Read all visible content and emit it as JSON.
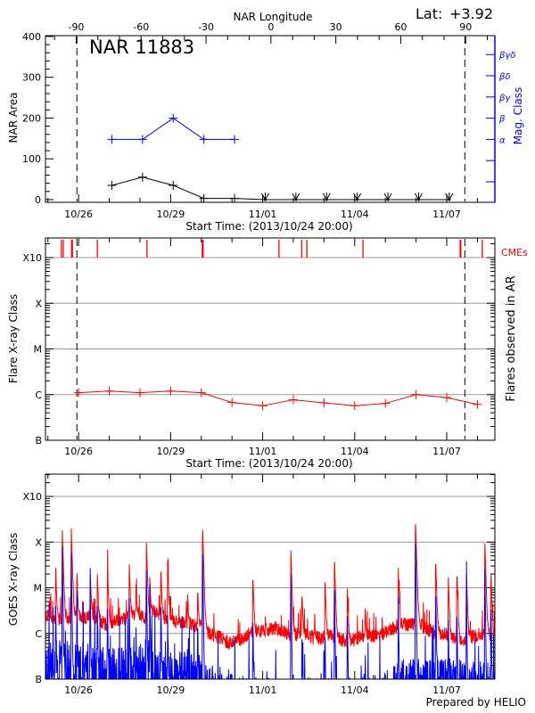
{
  "header": {
    "lat_label": "Lat:",
    "lat_value": "+3.92"
  },
  "footer": {
    "credit": "Prepared by HELIO"
  },
  "colors": {
    "axis": "#000000",
    "grid": "#999999",
    "area": "#000000",
    "mag_class": "#0000ff",
    "flare": "#ff0000",
    "cme": "#ff0000",
    "goes_long": "#ff0000",
    "goes_short": "#0000ff"
  },
  "chart_data": [
    {
      "type": "line",
      "title": "NAR 11883",
      "xlabel": "Start Time: (2013/10/24 20:00)",
      "ylabel": "NAR Area",
      "y2label": "Mag. Class",
      "top_axis_label": "NAR Longitude",
      "top_axis_ticks": [
        "-90",
        "-60",
        "-30",
        "0",
        "30",
        "60",
        "90"
      ],
      "top_axis_range": [
        -104.2,
        103.5
      ],
      "xlim": [
        "2013-10-24T22:05",
        "2013-11-08T13:40"
      ],
      "x_ticks": [
        {
          "label": "10/26",
          "t": "2013-10-26T00:00"
        },
        {
          "label": "10/29",
          "t": "2013-10-29T00:00"
        },
        {
          "label": "11/01",
          "t": "2013-11-01T00:00"
        },
        {
          "label": "11/04",
          "t": "2013-11-04T00:00"
        },
        {
          "label": "11/07",
          "t": "2013-11-07T00:00"
        }
      ],
      "ylim": [
        -6.6,
        402
      ],
      "y_ticks": [
        "0",
        "100",
        "200",
        "300",
        "400"
      ],
      "mag_class_ticks": [
        "α",
        "β",
        "βγ",
        "βδ",
        "βγδ"
      ],
      "limb_crossings": [
        "2013-10-25T22:40",
        "2013-11-07T14:10"
      ],
      "area_series": [
        {
          "t": "2013-10-27T02:00",
          "v": 35,
          "marker": "plus"
        },
        {
          "t": "2013-10-28T02:00",
          "v": 55,
          "marker": "plus"
        },
        {
          "t": "2013-10-29T02:00",
          "v": 35,
          "marker": "plus"
        },
        {
          "t": "2013-10-30T02:00",
          "v": 3,
          "marker": "plus"
        },
        {
          "t": "2013-10-31T02:00",
          "v": 3,
          "marker": "plus"
        },
        {
          "t": "2013-11-01T02:00",
          "v": 0,
          "marker": "v"
        },
        {
          "t": "2013-11-02T02:00",
          "v": 0,
          "marker": "v"
        },
        {
          "t": "2013-11-03T02:00",
          "v": 0,
          "marker": "v"
        },
        {
          "t": "2013-11-04T02:00",
          "v": 0,
          "marker": "v"
        },
        {
          "t": "2013-11-05T02:00",
          "v": 0,
          "marker": "v"
        },
        {
          "t": "2013-11-06T02:00",
          "v": 0,
          "marker": "v"
        },
        {
          "t": "2013-11-07T02:00",
          "v": 0,
          "marker": "v"
        }
      ],
      "mag_class_series": [
        {
          "t": "2013-10-27T02:00",
          "v": "α"
        },
        {
          "t": "2013-10-28T02:00",
          "v": "α"
        },
        {
          "t": "2013-10-29T02:00",
          "v": "β"
        },
        {
          "t": "2013-10-30T02:00",
          "v": "α"
        },
        {
          "t": "2013-10-31T02:00",
          "v": "α"
        }
      ]
    },
    {
      "type": "line",
      "xlabel": "Start Time: (2013/10/24 20:00)",
      "ylabel": "Flare X-ray Class",
      "y2label": "Flares observed in AR",
      "y_scale": "log",
      "ylim": [
        1e-07,
        0.0027
      ],
      "y_ticks": [
        {
          "label": "B",
          "v": 1e-07
        },
        {
          "label": "C",
          "v": 1e-06
        },
        {
          "label": "M",
          "v": 1e-05
        },
        {
          "label": "X",
          "v": 0.0001
        },
        {
          "label": "X10",
          "v": 0.001
        }
      ],
      "grid": true,
      "limb_crossings": [
        "2013-10-25T22:40",
        "2013-11-07T14:10"
      ],
      "cme_label": "CMEs",
      "cme_times": [
        "2013-10-25T10:30",
        "2013-10-25T12:00",
        "2013-10-25T18:30",
        "2013-10-25T19:10",
        "2013-10-26T14:40",
        "2013-10-28T05:30",
        "2013-10-30T00:45",
        "2013-10-30T01:25",
        "2013-11-01T12:45",
        "2013-11-02T06:30",
        "2013-11-02T10:35",
        "2013-11-04T06:30",
        "2013-11-07T10:30",
        "2013-11-07T11:00",
        "2013-11-08T03:50"
      ],
      "flare_series": [
        {
          "t": "2013-10-26T00:00",
          "v": 1.1e-06
        },
        {
          "t": "2013-10-27T00:00",
          "v": 1.2e-06
        },
        {
          "t": "2013-10-28T00:00",
          "v": 1.1e-06
        },
        {
          "t": "2013-10-29T00:00",
          "v": 1.2e-06
        },
        {
          "t": "2013-10-30T00:00",
          "v": 1.1e-06
        },
        {
          "t": "2013-10-31T00:00",
          "v": 6.7e-07
        },
        {
          "t": "2013-11-01T00:00",
          "v": 5.7e-07
        },
        {
          "t": "2013-11-02T00:00",
          "v": 7.7e-07
        },
        {
          "t": "2013-11-03T00:00",
          "v": 6.6e-07
        },
        {
          "t": "2013-11-04T00:00",
          "v": 5.7e-07
        },
        {
          "t": "2013-11-05T00:00",
          "v": 6.4e-07
        },
        {
          "t": "2013-11-06T00:00",
          "v": 1e-06
        },
        {
          "t": "2013-11-07T00:00",
          "v": 8.6e-07
        },
        {
          "t": "2013-11-08T00:00",
          "v": 6.1e-07
        }
      ]
    },
    {
      "type": "line",
      "ylabel": "GOES X-ray Class",
      "y_scale": "log",
      "ylim": [
        1e-07,
        0.0031
      ],
      "y_ticks": [
        {
          "label": "B",
          "v": 1e-07
        },
        {
          "label": "C",
          "v": 1e-06
        },
        {
          "label": "M",
          "v": 1e-05
        },
        {
          "label": "X",
          "v": 0.0001
        },
        {
          "label": "X10",
          "v": 0.001
        }
      ],
      "grid": true,
      "series": [
        {
          "color": "#ff0000",
          "background": [
            [
              "2013-10-24T22:00",
              2.5e-06
            ],
            [
              "2013-10-25T04:00",
              2.2e-06
            ],
            [
              "2013-10-25T10:00",
              1.9e-06
            ],
            [
              "2013-10-25T16:00",
              2.2e-06
            ],
            [
              "2013-10-25T22:00",
              2.5e-06
            ],
            [
              "2013-10-26T04:00",
              2e-06
            ],
            [
              "2013-10-26T10:00",
              2.5e-06
            ],
            [
              "2013-10-26T16:00",
              2e-06
            ],
            [
              "2013-10-26T22:00",
              1.5e-06
            ],
            [
              "2013-10-27T04:00",
              1.8e-06
            ],
            [
              "2013-10-27T10:00",
              2e-06
            ],
            [
              "2013-10-27T16:00",
              2.5e-06
            ],
            [
              "2013-10-27T22:00",
              2.5e-06
            ],
            [
              "2013-10-28T04:00",
              2.2e-06
            ],
            [
              "2013-10-28T10:00",
              3e-06
            ],
            [
              "2013-10-28T16:00",
              2.5e-06
            ],
            [
              "2013-10-28T22:00",
              2e-06
            ],
            [
              "2013-10-29T04:00",
              1.8e-06
            ],
            [
              "2013-10-29T10:00",
              1.8e-06
            ],
            [
              "2013-10-29T16:00",
              1.5e-06
            ],
            [
              "2013-10-29T22:00",
              1.5e-06
            ],
            [
              "2013-10-30T04:00",
              1.1e-06
            ],
            [
              "2013-10-30T10:00",
              9e-07
            ],
            [
              "2013-10-30T16:00",
              8e-07
            ],
            [
              "2013-10-30T22:00",
              6e-07
            ],
            [
              "2013-10-31T04:00",
              7e-07
            ],
            [
              "2013-10-31T10:00",
              8e-07
            ],
            [
              "2013-10-31T16:00",
              1.2e-06
            ],
            [
              "2013-10-31T22:00",
              1.1e-06
            ],
            [
              "2013-11-01T04:00",
              1.2e-06
            ],
            [
              "2013-11-01T10:00",
              1.3e-06
            ],
            [
              "2013-11-01T16:00",
              1.1e-06
            ],
            [
              "2013-11-01T22:00",
              9e-07
            ],
            [
              "2013-11-02T04:00",
              1e-06
            ],
            [
              "2013-11-02T10:00",
              1e-06
            ],
            [
              "2013-11-02T16:00",
              8e-07
            ],
            [
              "2013-11-02T22:00",
              8e-07
            ],
            [
              "2013-11-03T04:00",
              9e-07
            ],
            [
              "2013-11-03T10:00",
              8e-07
            ],
            [
              "2013-11-03T16:00",
              7e-07
            ],
            [
              "2013-11-03T22:00",
              7e-07
            ],
            [
              "2013-11-04T04:00",
              8e-07
            ],
            [
              "2013-11-04T10:00",
              9e-07
            ],
            [
              "2013-11-04T16:00",
              9e-07
            ],
            [
              "2013-11-04T22:00",
              1e-06
            ],
            [
              "2013-11-05T04:00",
              1.2e-06
            ],
            [
              "2013-11-05T10:00",
              1.5e-06
            ],
            [
              "2013-11-05T16:00",
              1.6e-06
            ],
            [
              "2013-11-05T22:00",
              1.6e-06
            ],
            [
              "2013-11-06T04:00",
              1.5e-06
            ],
            [
              "2013-11-06T10:00",
              1.2e-06
            ],
            [
              "2013-11-06T16:00",
              1e-06
            ],
            [
              "2013-11-06T22:00",
              1e-06
            ],
            [
              "2013-11-07T04:00",
              8e-07
            ],
            [
              "2013-11-07T10:00",
              7e-07
            ],
            [
              "2013-11-07T16:00",
              8e-07
            ],
            [
              "2013-11-07T22:00",
              9e-07
            ],
            [
              "2013-11-08T04:00",
              1e-06
            ],
            [
              "2013-11-08T10:00",
              9e-07
            ],
            [
              "2013-11-08T14:00",
              9e-07
            ]
          ]
        },
        {
          "color": "#0000ff",
          "background": [
            [
              "2013-10-24T22:00",
              2e-07
            ],
            [
              "2013-10-26T00:00",
              2e-07
            ],
            [
              "2013-10-27T00:00",
              1.5e-07
            ],
            [
              "2013-10-28T00:00",
              1.5e-07
            ],
            [
              "2013-10-29T00:00",
              1.2e-07
            ],
            [
              "2013-10-30T00:00",
              1e-07
            ],
            [
              "2013-10-30T12:00",
              4e-08
            ],
            [
              "2013-11-01T00:00",
              3e-08
            ],
            [
              "2013-11-03T00:00",
              3e-08
            ],
            [
              "2013-11-05T00:00",
              4e-08
            ],
            [
              "2013-11-05T12:00",
              8e-08
            ],
            [
              "2013-11-07T00:00",
              8e-08
            ],
            [
              "2013-11-08T14:00",
              7e-08
            ]
          ]
        }
      ],
      "flare_peaks": [
        {
          "t": "2013-10-25T06:00",
          "long": 3.1e-05,
          "short": 6e-06
        },
        {
          "t": "2013-10-25T11:17",
          "long": 0.00018,
          "short": 7.9e-05
        },
        {
          "t": "2013-10-25T18:14",
          "long": 0.00022,
          "short": 7.3e-05
        },
        {
          "t": "2013-10-25T22:34",
          "long": 2.4e-05,
          "short": 5e-06
        },
        {
          "t": "2013-10-26T09:07",
          "long": 2.4e-05,
          "short": 6e-06
        },
        {
          "t": "2013-10-26T14:38",
          "long": 1.9e-05,
          "short": 5e-06
        },
        {
          "t": "2013-10-26T22:34",
          "long": 3.3e-05,
          "short": 6e-06
        },
        {
          "t": "2013-10-27T15:36",
          "long": 3.6e-05,
          "short": 8.9e-06
        },
        {
          "t": "2013-10-27T20:53",
          "long": 9.6e-06,
          "short": 1e-06
        },
        {
          "t": "2013-10-28T05:02",
          "long": 0.000106,
          "short": 3.1e-05
        },
        {
          "t": "2013-10-28T07:41",
          "long": 1.5e-05,
          "short": 1.2e-05
        },
        {
          "t": "2013-10-28T16:19",
          "long": 2.9e-05,
          "short": 6.9e-06
        },
        {
          "t": "2013-10-28T21:36",
          "long": 4.5e-05,
          "short": 3e-06
        },
        {
          "t": "2013-10-29T13:12",
          "long": 6.6e-06,
          "short": 5e-07
        },
        {
          "t": "2013-10-29T21:07",
          "long": 9.6e-06,
          "short": 2e-06
        },
        {
          "t": "2013-10-30T00:58",
          "long": 0.00024,
          "short": 9.7e-05
        },
        {
          "t": "2013-10-31T16:19",
          "long": 2e-05,
          "short": 3e-06
        },
        {
          "t": "2013-11-01T22:05",
          "long": 6.5e-05,
          "short": 1.9e-05
        },
        {
          "t": "2013-11-02T06:43",
          "long": 8.3e-06,
          "short": 1.3e-06
        },
        {
          "t": "2013-11-03T00:43",
          "long": 1.8e-05,
          "short": 1.5e-06
        },
        {
          "t": "2013-11-03T08:10",
          "long": 4.5e-05,
          "short": 1.6e-05
        },
        {
          "t": "2013-11-03T18:14",
          "long": 1e-05,
          "short": 3e-06
        },
        {
          "t": "2013-11-04T08:10",
          "long": 3.4e-06,
          "short": 5e-07
        },
        {
          "t": "2013-11-05T10:05",
          "long": 2.6e-05,
          "short": 6e-06
        },
        {
          "t": "2013-11-05T23:31",
          "long": 0.000355,
          "short": 0.00017
        },
        {
          "t": "2013-11-06T15:22",
          "long": 4e-05,
          "short": 1.15e-05
        },
        {
          "t": "2013-11-07T01:12",
          "long": 1.95e-05,
          "short": 3e-06
        },
        {
          "t": "2013-11-07T07:55",
          "long": 2.5e-05,
          "short": 4e-06
        },
        {
          "t": "2013-11-07T15:22",
          "long": 2.5e-05,
          "short": 8.2e-06
        },
        {
          "t": "2013-11-08T05:46",
          "long": 0.00012,
          "short": 4.5e-05
        },
        {
          "t": "2013-11-08T10:34",
          "long": 2.4e-05,
          "short": 6e-06
        }
      ]
    }
  ]
}
